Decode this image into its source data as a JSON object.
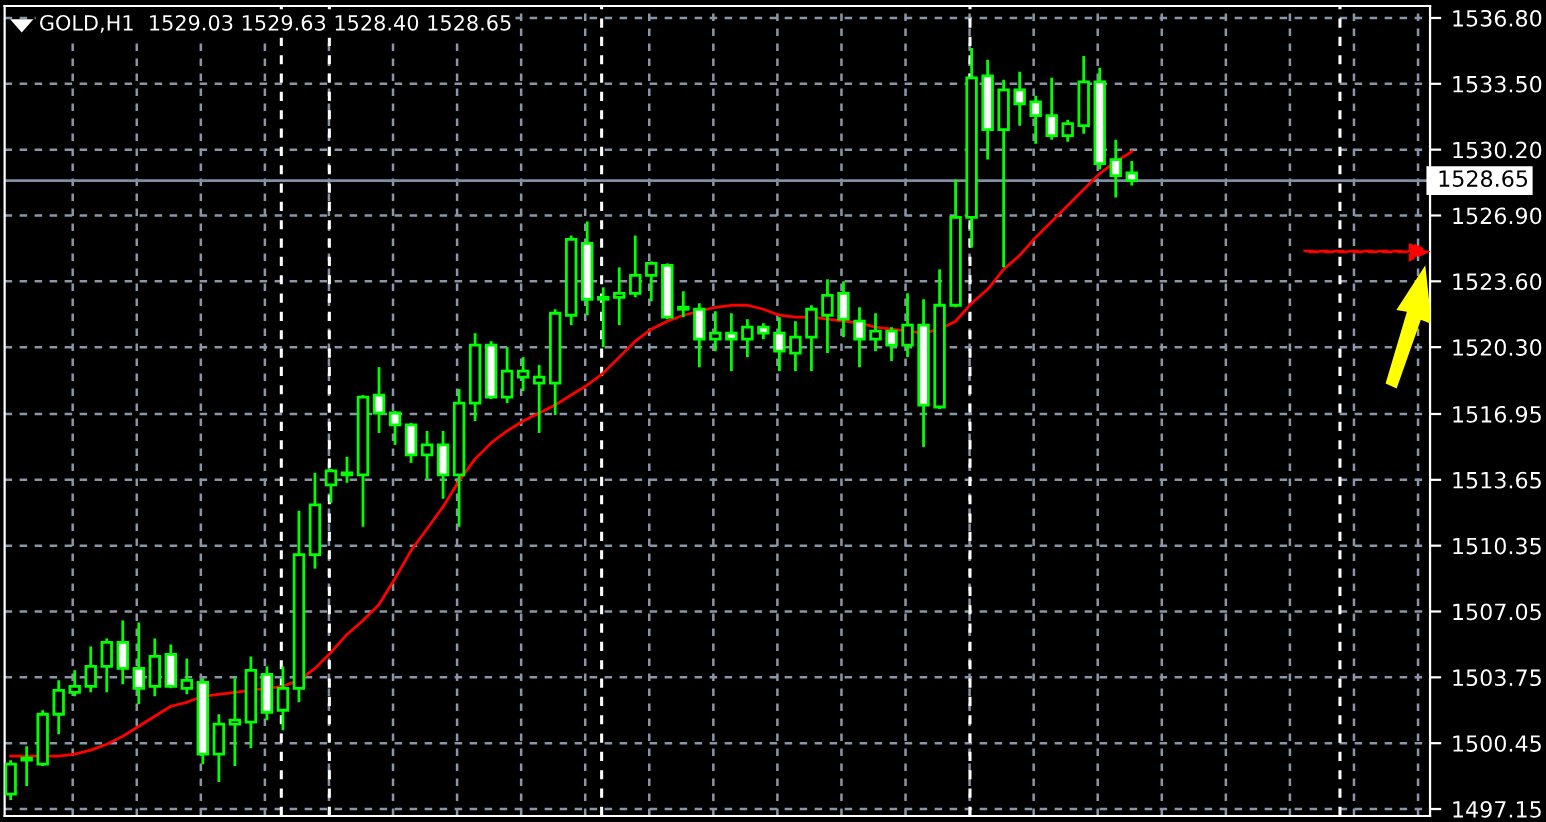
{
  "chart_data": {
    "type": "candlestick",
    "title": "GOLD,H1  1529.03 1529.63 1528.40 1528.65",
    "categories": [
      null,
      null,
      null,
      null,
      null,
      null,
      null,
      null,
      null,
      null,
      null,
      null,
      null,
      null,
      null,
      null,
      null,
      null,
      null,
      null,
      null,
      null,
      null,
      null,
      null,
      null,
      null,
      null,
      null,
      null,
      null,
      null,
      null,
      null,
      null,
      null,
      null,
      null,
      null,
      null,
      null,
      null,
      null,
      null,
      null,
      null,
      null,
      null,
      null,
      null,
      null,
      null,
      null,
      null,
      null,
      null,
      null,
      null,
      null,
      null,
      null,
      null,
      null,
      null,
      null,
      null,
      null,
      null,
      null,
      null,
      null
    ],
    "ohlc": [
      [
        1497.9,
        1499.6,
        1497.6,
        1499.4
      ],
      [
        1499.6,
        1500.3,
        1498.3,
        1499.7
      ],
      [
        1499.4,
        1502.1,
        1499.3,
        1501.9
      ],
      [
        1501.9,
        1503.6,
        1500.9,
        1503.1
      ],
      [
        1503.0,
        1504.1,
        1502.8,
        1503.3
      ],
      [
        1503.3,
        1505.3,
        1503.0,
        1504.3
      ],
      [
        1504.3,
        1505.7,
        1503.0,
        1505.5
      ],
      [
        1505.5,
        1506.6,
        1503.4,
        1504.2
      ],
      [
        1504.2,
        1506.5,
        1502.4,
        1503.2
      ],
      [
        1503.3,
        1505.7,
        1502.8,
        1504.8
      ],
      [
        1504.9,
        1505.4,
        1503.2,
        1503.3
      ],
      [
        1503.2,
        1504.7,
        1502.9,
        1503.6
      ],
      [
        1503.5,
        1503.7,
        1499.4,
        1499.9
      ],
      [
        1499.9,
        1501.9,
        1498.5,
        1501.4
      ],
      [
        1501.4,
        1503.7,
        1499.3,
        1501.6
      ],
      [
        1501.5,
        1504.8,
        1500.2,
        1504.1
      ],
      [
        1503.9,
        1504.3,
        1501.6,
        1502.0
      ],
      [
        1502.1,
        1504.3,
        1501.1,
        1503.2
      ],
      [
        1503.2,
        1512.1,
        1502.5,
        1509.9
      ],
      [
        1509.9,
        1514.0,
        1509.2,
        1512.4
      ],
      [
        1513.4,
        1514.2,
        1512.5,
        1514.1
      ],
      [
        1513.9,
        1514.8,
        1513.5,
        1514.0
      ],
      [
        1513.9,
        1517.9,
        1511.3,
        1517.8
      ],
      [
        1517.9,
        1519.3,
        1516.0,
        1517.0
      ],
      [
        1517.0,
        1517.1,
        1515.4,
        1516.4
      ],
      [
        1516.4,
        1516.5,
        1514.5,
        1514.9
      ],
      [
        1514.9,
        1516.1,
        1513.7,
        1515.4
      ],
      [
        1515.4,
        1516.1,
        1512.7,
        1513.9
      ],
      [
        1513.9,
        1518.2,
        1511.3,
        1517.5
      ],
      [
        1517.5,
        1521.0,
        1516.6,
        1520.4
      ],
      [
        1520.4,
        1520.6,
        1517.7,
        1517.8
      ],
      [
        1517.8,
        1520.3,
        1517.5,
        1519.1
      ],
      [
        1518.8,
        1519.8,
        1518.1,
        1519.1
      ],
      [
        1518.5,
        1519.4,
        1516.0,
        1518.8
      ],
      [
        1518.5,
        1522.2,
        1516.9,
        1522.0
      ],
      [
        1521.9,
        1525.9,
        1521.4,
        1525.7
      ],
      [
        1525.5,
        1526.6,
        1521.9,
        1522.7
      ],
      [
        1522.8,
        1523.3,
        1520.3,
        1522.7
      ],
      [
        1522.8,
        1524.3,
        1521.4,
        1523.0
      ],
      [
        1523.0,
        1525.9,
        1522.8,
        1523.9
      ],
      [
        1523.9,
        1524.6,
        1522.6,
        1524.5
      ],
      [
        1524.4,
        1524.5,
        1521.7,
        1521.8
      ],
      [
        1522.3,
        1523.1,
        1521.8,
        1522.2
      ],
      [
        1522.2,
        1522.5,
        1519.3,
        1520.7
      ],
      [
        1520.7,
        1522.1,
        1520.1,
        1521.0
      ],
      [
        1521.0,
        1522.0,
        1519.1,
        1520.7
      ],
      [
        1520.7,
        1521.7,
        1519.8,
        1521.3
      ],
      [
        1521.3,
        1521.5,
        1520.7,
        1521.0
      ],
      [
        1521.0,
        1521.8,
        1519.1,
        1520.1
      ],
      [
        1520.0,
        1521.6,
        1519.1,
        1520.8
      ],
      [
        1520.8,
        1522.4,
        1519.1,
        1522.2
      ],
      [
        1521.9,
        1523.7,
        1520.0,
        1522.9
      ],
      [
        1523.0,
        1523.6,
        1520.8,
        1521.7
      ],
      [
        1521.6,
        1522.3,
        1519.3,
        1520.7
      ],
      [
        1520.7,
        1522.0,
        1520.1,
        1521.1
      ],
      [
        1521.1,
        1521.3,
        1519.6,
        1520.4
      ],
      [
        1520.4,
        1523.0,
        1519.8,
        1521.4
      ],
      [
        1521.4,
        1522.7,
        1515.3,
        1517.4
      ],
      [
        1517.3,
        1524.2,
        1517.2,
        1522.4
      ],
      [
        1522.4,
        1528.7,
        1522.3,
        1526.8
      ],
      [
        1526.8,
        1535.3,
        1525.3,
        1533.8
      ],
      [
        1533.9,
        1534.7,
        1529.7,
        1531.2
      ],
      [
        1531.2,
        1533.7,
        1524.3,
        1533.2
      ],
      [
        1533.2,
        1534.1,
        1531.4,
        1532.5
      ],
      [
        1532.6,
        1532.9,
        1530.5,
        1531.9
      ],
      [
        1531.9,
        1533.8,
        1530.7,
        1530.9
      ],
      [
        1530.9,
        1531.7,
        1530.6,
        1531.5
      ],
      [
        1531.4,
        1534.9,
        1531.0,
        1533.6
      ],
      [
        1533.6,
        1534.3,
        1529.2,
        1529.5
      ],
      [
        1529.7,
        1530.7,
        1527.8,
        1528.9
      ],
      [
        1529.03,
        1529.63,
        1528.4,
        1528.65
      ]
    ],
    "color": "#00ff00",
    "series": [
      {
        "type": "line",
        "color": "#ff0000",
        "values": [
          1499.8,
          1499.8,
          1499.8,
          1499.8,
          1499.9,
          1500.1,
          1500.4,
          1500.8,
          1501.3,
          1501.8,
          1502.3,
          1502.5,
          1502.8,
          1502.9,
          1503.0,
          1503.1,
          1503.2,
          1503.3,
          1503.6,
          1504.2,
          1505.0,
          1505.9,
          1506.6,
          1507.4,
          1508.7,
          1510.1,
          1511.2,
          1512.3,
          1513.6,
          1514.7,
          1515.5,
          1516.1,
          1516.6,
          1517.0,
          1517.4,
          1517.9,
          1518.4,
          1519.0,
          1519.8,
          1520.6,
          1521.2,
          1521.6,
          1521.9,
          1522.1,
          1522.3,
          1522.4,
          1522.4,
          1522.2,
          1521.9,
          1521.8,
          1521.8,
          1521.7,
          1521.6,
          1521.5,
          1521.3,
          1521.2,
          1521.1,
          1521.0,
          1521.2,
          1521.6,
          1522.5,
          1523.2,
          1524.2,
          1524.9,
          1525.8,
          1526.6,
          1527.4,
          1528.2,
          1529.0,
          1529.6,
          1530.1
        ]
      }
    ],
    "ylim": [
      1496.8,
      1537.4
    ],
    "yticks": [
      {
        "value": 1497.15,
        "label": "1497.15"
      },
      {
        "value": 1500.45,
        "label": "1500.45"
      },
      {
        "value": 1503.75,
        "label": "1503.75"
      },
      {
        "value": 1507.05,
        "label": "1507.05"
      },
      {
        "value": 1510.35,
        "label": "1510.35"
      },
      {
        "value": 1513.65,
        "label": "1513.65"
      },
      {
        "value": 1516.95,
        "label": "1516.95"
      },
      {
        "value": 1520.3,
        "label": "1520.30"
      },
      {
        "value": 1523.6,
        "label": "1523.60"
      },
      {
        "value": 1526.9,
        "label": "1526.90"
      },
      {
        "value": 1530.2,
        "label": "1530.20"
      },
      {
        "value": 1533.5,
        "label": "1533.50"
      },
      {
        "value": 1536.8,
        "label": "1536.80"
      }
    ],
    "ref_lines": [
      {
        "axis": "y",
        "value": 1528.65,
        "label": "1528.65",
        "color": "#7f8fa6"
      }
    ],
    "grid": true,
    "tick_labels": "y"
  }
}
